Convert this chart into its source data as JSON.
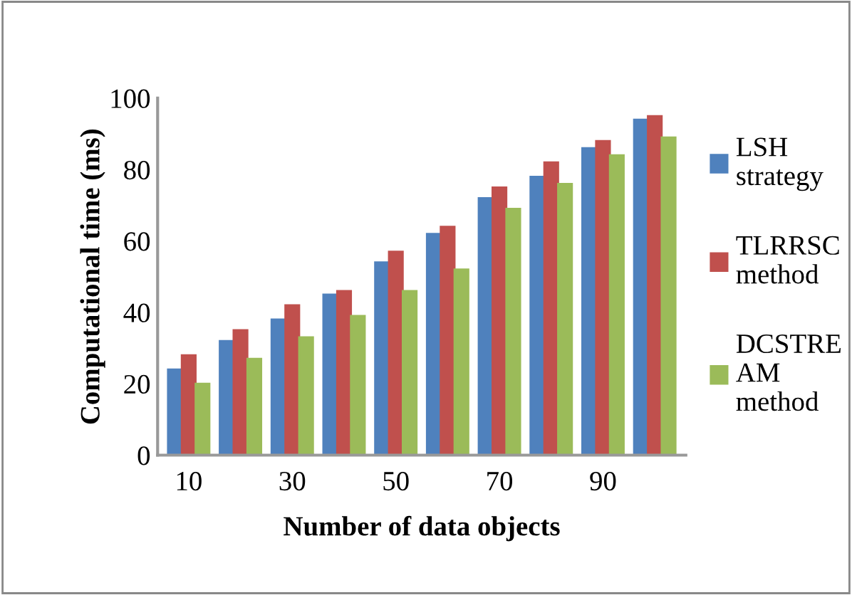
{
  "chart_data": {
    "type": "bar",
    "xlabel": "Number of data objects",
    "ylabel": "Computational time (ms)",
    "categories": [
      "10",
      null,
      "30",
      null,
      "50",
      null,
      "70",
      null,
      "90",
      null
    ],
    "series": [
      {
        "name": "LSH strategy",
        "color": "#4f81bd",
        "values": [
          24,
          32,
          38,
          45,
          54,
          62,
          72,
          78,
          86,
          94
        ]
      },
      {
        "name": "TLRRSC method",
        "color": "#c0504d",
        "values": [
          28,
          35,
          42,
          46,
          57,
          64,
          75,
          82,
          88,
          95
        ]
      },
      {
        "name": "DCSTREAM method",
        "color": "#9bbb59",
        "values": [
          20,
          27,
          33,
          39,
          46,
          52,
          69,
          76,
          84,
          89
        ]
      }
    ],
    "ylim": [
      0,
      100
    ],
    "yticks": [
      0,
      20,
      40,
      60,
      80,
      100
    ],
    "grid": false,
    "legend": "right"
  }
}
